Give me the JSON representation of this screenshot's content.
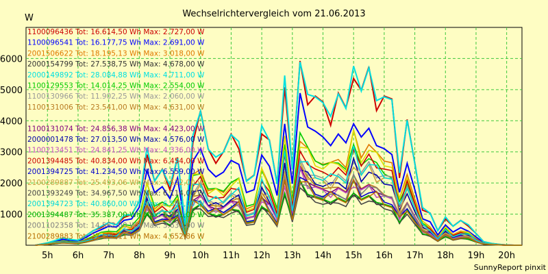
{
  "chart_data": {
    "type": "line",
    "title": "Wechselrichtervergleich vom 21.06.2013",
    "ylabel": "W",
    "footer": "SunnyReport pinxit",
    "ylim": [
      0,
      7000
    ],
    "xlim": [
      4.3,
      20.5
    ],
    "grid": true,
    "legend_position": "top-left",
    "x_ticks": [
      {
        "x": 5,
        "label": "5h"
      },
      {
        "x": 6,
        "label": "6h"
      },
      {
        "x": 7,
        "label": "7h"
      },
      {
        "x": 8,
        "label": "8h"
      },
      {
        "x": 9,
        "label": "9h"
      },
      {
        "x": 10,
        "label": "10h"
      },
      {
        "x": 11,
        "label": "11h"
      },
      {
        "x": 12,
        "label": "12h"
      },
      {
        "x": 13,
        "label": "13h"
      },
      {
        "x": 14,
        "label": "14h"
      },
      {
        "x": 15,
        "label": "15h"
      },
      {
        "x": 16,
        "label": "16h"
      },
      {
        "x": 17,
        "label": "17h"
      },
      {
        "x": 18,
        "label": "18h"
      },
      {
        "x": 19,
        "label": "19h"
      },
      {
        "x": 20,
        "label": "20h"
      }
    ],
    "y_ticks": [
      1000,
      2000,
      3000,
      4000,
      5000,
      6000
    ],
    "x": [
      4.6,
      4.8,
      5.0,
      5.25,
      5.5,
      5.75,
      6.0,
      6.25,
      6.5,
      6.75,
      7.0,
      7.25,
      7.5,
      7.75,
      8.0,
      8.25,
      8.5,
      8.75,
      9.0,
      9.25,
      9.5,
      9.75,
      10.0,
      10.25,
      10.5,
      10.75,
      11.0,
      11.25,
      11.5,
      11.75,
      12.0,
      12.25,
      12.5,
      12.75,
      13.0,
      13.25,
      13.5,
      13.75,
      14.0,
      14.25,
      14.5,
      14.75,
      15.0,
      15.25,
      15.5,
      15.75,
      16.0,
      16.25,
      16.5,
      16.75,
      17.0,
      17.25,
      17.5,
      17.75,
      18.0,
      18.25,
      18.5,
      18.75,
      19.0,
      19.25,
      19.5,
      19.75,
      20.0,
      20.25,
      20.5
    ],
    "series": [
      {
        "name": "1100096436 Tot: 16.614,50 Wh Max: 2.727,00 W",
        "color": "#cc0000",
        "peak": 0.94
      },
      {
        "name": "1100096541 Tot: 16.177,75 Wh Max: 2.691,00 W",
        "color": "#0000ff",
        "peak": 0.96
      },
      {
        "name": "2001506622 Tot: 18.195,13 Wh Max: 3.018,00 W",
        "color": "#e07800",
        "peak": 0.57
      },
      {
        "name": "2000154799 Tot: 27.538,75 Wh Max: 4.678,00 W",
        "color": "#333333",
        "peak": 0.4
      },
      {
        "name": "2000149892 Tot: 28.084,88 Wh Max: 4.711,00 W",
        "color": "#00e0e0",
        "peak": 0.96
      },
      {
        "name": "1100129553 Tot: 14.014,25 Wh Max: 2.554,00 W",
        "color": "#00cc00",
        "peak": 0.74
      },
      {
        "name": "1100130966 Tot: 11.902,25 Wh Max: 2.060,00 W",
        "color": "#999999",
        "peak": 0.45
      },
      {
        "name": "1100131006 Tot: 23.541,00 Wh Max: 4.631,00 W",
        "color": "#b87a20",
        "peak": 0.52
      },
      {
        "name": "",
        "color": "#dddd00",
        "peak": 0.55
      },
      {
        "name": "1100131074 Tot: 24.856,38 Wh Max: 4.423,00 W",
        "color": "#800080",
        "peak": 0.5
      },
      {
        "name": "2000001478 Tot: 27.013,50 Wh Max: 4.576,00 W",
        "color": "#0000aa",
        "peak": 0.42
      },
      {
        "name": "1100213451 Tot: 24.841,25 Wh Max: 4.336,00 W",
        "color": "#c050c0",
        "peak": 0.48
      },
      {
        "name": "2001394485 Tot: 40.834,00 Wh Max: 6.454,00 W",
        "color": "#cc0000",
        "peak": 0.5
      },
      {
        "name": "2001394725 Tot: 41.234,50 Wh Max: 6.559,00 W",
        "color": "#0000cc",
        "peak": 0.46
      },
      {
        "name": "2100289887 Tot: 25.493,06 Wh Max: 4.522,00 W",
        "color": "#c8a040",
        "peak": 0.43
      },
      {
        "name": "2001393249 Tot: 34.967,50 Wh Max: 6.114,00 W",
        "color": "#444444",
        "peak": 0.38
      },
      {
        "name": "2001394723 Tot: 40.860,00 Wh Max: 6.584,00 W",
        "color": "#00d8d8",
        "peak": 0.47
      },
      {
        "name": "2001394487 Tot: 35.387,00 Wh Max: 6.201,00 W",
        "color": "#00b000",
        "peak": 0.41
      },
      {
        "name": "2001102358 Tot: 14.562,00 Wh Max: 3.631,00 W",
        "color": "#808080",
        "peak": 0.34
      },
      {
        "name": "2100289883 Tot: 27.506,11 Wh Max: 4.652,86 W",
        "color": "#b86e00",
        "peak": 0.44
      }
    ],
    "shapes": [
      {
        "name": "base",
        "values": [
          0,
          40,
          80,
          150,
          250,
          200,
          160,
          320,
          500,
          600,
          780,
          700,
          950,
          1050,
          1500,
          3100,
          2200,
          2600,
          1900,
          3000,
          700,
          3500,
          4600,
          3300,
          2800,
          3200,
          3800,
          3300,
          2200,
          2400,
          3800,
          3600,
          2100,
          5400,
          2600,
          6300,
          4800,
          5100,
          4900,
          4100,
          5200,
          4700,
          5700,
          5300,
          6100,
          4600,
          5100,
          5000,
          2300,
          4300,
          2800,
          1200,
          1100,
          500,
          900,
          650,
          850,
          650,
          400,
          120,
          60,
          30,
          10,
          0,
          0
        ]
      },
      {
        "name": "alt",
        "values": [
          0,
          30,
          60,
          120,
          200,
          170,
          120,
          260,
          420,
          500,
          650,
          620,
          800,
          900,
          1300,
          2400,
          1800,
          2000,
          1500,
          2300,
          650,
          2700,
          3300,
          2600,
          2200,
          2500,
          2900,
          2600,
          1800,
          1900,
          2900,
          2700,
          1700,
          3900,
          2100,
          5200,
          3800,
          3900,
          3700,
          3200,
          3800,
          3500,
          3900,
          3700,
          4000,
          3200,
          3300,
          3100,
          1700,
          2800,
          1900,
          850,
          800,
          350,
          650,
          450,
          600,
          450,
          280,
          90,
          40,
          20,
          5,
          0,
          0
        ]
      }
    ]
  }
}
